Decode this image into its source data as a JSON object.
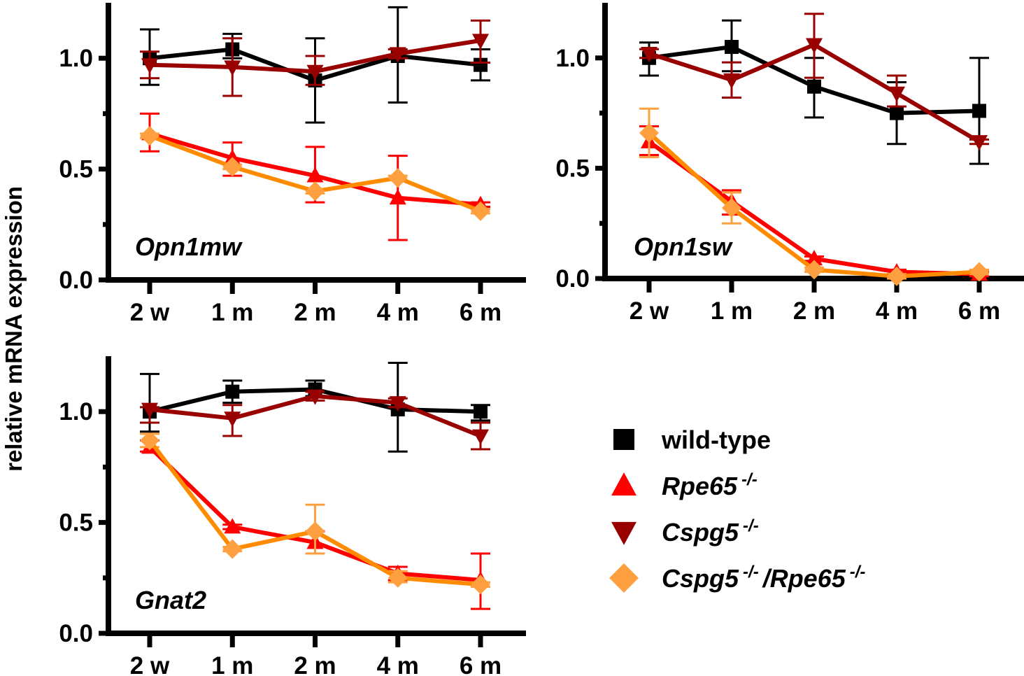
{
  "chart_data": [
    {
      "type": "line",
      "title": "Opn1mw",
      "ylabel": "relative mRNA expression",
      "categories": [
        "2 w",
        "1 m",
        "2 m",
        "4 m",
        "6 m"
      ],
      "yticks": [
        "0.0",
        "0.5",
        "1.0"
      ],
      "ylim": [
        0,
        1.25
      ],
      "series": [
        {
          "name": "wild-type",
          "values": [
            1.0,
            1.04,
            0.9,
            1.01,
            0.97
          ],
          "err_low": [
            0.88,
            1.0,
            0.71,
            0.8,
            0.9
          ],
          "err_high": [
            1.13,
            1.11,
            1.09,
            1.23,
            1.04
          ]
        },
        {
          "name": "Cspg5-/-",
          "values": [
            0.97,
            0.96,
            0.94,
            1.02,
            1.08
          ],
          "err_low": [
            0.91,
            0.83,
            0.88,
            1.0,
            0.98
          ],
          "err_high": [
            1.03,
            1.09,
            1.01,
            1.04,
            1.17
          ]
        },
        {
          "name": "Rpe65-/-",
          "values": [
            0.66,
            0.55,
            0.47,
            0.37,
            0.34
          ],
          "err_low": [
            0.58,
            0.47,
            0.35,
            0.18,
            0.33
          ],
          "err_high": [
            0.75,
            0.62,
            0.6,
            0.56,
            0.35
          ]
        },
        {
          "name": "Cspg5-/-/Rpe65-/-",
          "values": [
            0.65,
            0.51,
            0.4,
            0.46,
            0.31
          ],
          "err_low": [
            0.64,
            0.5,
            0.39,
            0.45,
            0.3
          ],
          "err_high": [
            0.66,
            0.52,
            0.41,
            0.47,
            0.32
          ]
        }
      ]
    },
    {
      "type": "line",
      "title": "Opn1sw",
      "categories": [
        "2 w",
        "1 m",
        "2 m",
        "4 m",
        "6 m"
      ],
      "yticks": [
        "0.0",
        "0.5",
        "1.0"
      ],
      "ylim": [
        0,
        1.25
      ],
      "series": [
        {
          "name": "wild-type",
          "values": [
            1.0,
            1.05,
            0.87,
            0.75,
            0.76
          ],
          "err_low": [
            0.92,
            0.94,
            0.73,
            0.61,
            0.52
          ],
          "err_high": [
            1.07,
            1.17,
            1.0,
            0.89,
            1.0
          ]
        },
        {
          "name": "Cspg5-/-",
          "values": [
            1.02,
            0.9,
            1.06,
            0.84,
            0.62
          ],
          "err_low": [
            1.0,
            0.82,
            0.91,
            0.78,
            0.61
          ],
          "err_high": [
            1.04,
            0.98,
            1.2,
            0.92,
            0.63
          ]
        },
        {
          "name": "Rpe65-/-",
          "values": [
            0.62,
            0.35,
            0.09,
            0.03,
            0.02
          ],
          "err_low": [
            0.56,
            0.29,
            0.08,
            0.02,
            0.01
          ],
          "err_high": [
            0.69,
            0.4,
            0.1,
            0.04,
            0.03
          ]
        },
        {
          "name": "Cspg5-/-/Rpe65-/-",
          "values": [
            0.66,
            0.32,
            0.04,
            0.01,
            0.03
          ],
          "err_low": [
            0.55,
            0.25,
            0.03,
            0.0,
            0.02
          ],
          "err_high": [
            0.77,
            0.39,
            0.05,
            0.02,
            0.04
          ]
        }
      ]
    },
    {
      "type": "line",
      "title": "Gnat2",
      "categories": [
        "2 w",
        "1 m",
        "2 m",
        "4 m",
        "6 m"
      ],
      "yticks": [
        "0.0",
        "0.5",
        "1.0"
      ],
      "ylim": [
        0,
        1.25
      ],
      "series": [
        {
          "name": "wild-type",
          "values": [
            1.0,
            1.09,
            1.1,
            1.01,
            1.0
          ],
          "err_low": [
            0.91,
            1.04,
            1.07,
            0.82,
            0.96
          ],
          "err_high": [
            1.17,
            1.14,
            1.14,
            1.22,
            1.03
          ]
        },
        {
          "name": "Cspg5-/-",
          "values": [
            1.01,
            0.97,
            1.07,
            1.04,
            0.89
          ],
          "err_low": [
            0.95,
            0.89,
            1.05,
            1.02,
            0.83
          ],
          "err_high": [
            1.02,
            1.03,
            1.09,
            1.06,
            0.95
          ]
        },
        {
          "name": "Rpe65-/-",
          "values": [
            0.84,
            0.48,
            0.41,
            0.27,
            0.24
          ],
          "err_low": [
            0.82,
            0.47,
            0.36,
            0.24,
            0.11
          ],
          "err_high": [
            0.87,
            0.49,
            0.46,
            0.3,
            0.36
          ]
        },
        {
          "name": "Cspg5-/-/Rpe65-/-",
          "values": [
            0.87,
            0.38,
            0.46,
            0.25,
            0.22
          ],
          "err_low": [
            0.84,
            0.37,
            0.36,
            0.23,
            0.21
          ],
          "err_high": [
            0.9,
            0.39,
            0.58,
            0.28,
            0.23
          ]
        }
      ]
    }
  ],
  "ylabel": "relative mRNA expression",
  "legend": {
    "position": "bottom-right",
    "items": [
      {
        "name": "wild-type",
        "base": "wild-type",
        "sup": "",
        "extra": "",
        "extra_sup": "",
        "italic": false,
        "marker": "square",
        "color": "#000000",
        "line_color": "#000000"
      },
      {
        "name": "Rpe65-/-",
        "base": "Rpe65",
        "sup": "-/-",
        "extra": "",
        "extra_sup": "",
        "italic": true,
        "marker": "triangle-up",
        "color": "#ff0000",
        "line_color": "#ff0000"
      },
      {
        "name": "Cspg5-/-",
        "base": "Cspg5",
        "sup": "-/-",
        "extra": "",
        "extra_sup": "",
        "italic": true,
        "marker": "triangle-down",
        "color": "#990000",
        "line_color": "#990000"
      },
      {
        "name": "Cspg5-/-/Rpe65-/-",
        "base": "Cspg5",
        "sup": "-/-",
        "extra": "/Rpe65",
        "extra_sup": "-/-",
        "italic": true,
        "marker": "diamond",
        "color": "#ffa040",
        "line_color": "#ff8c00"
      }
    ]
  }
}
